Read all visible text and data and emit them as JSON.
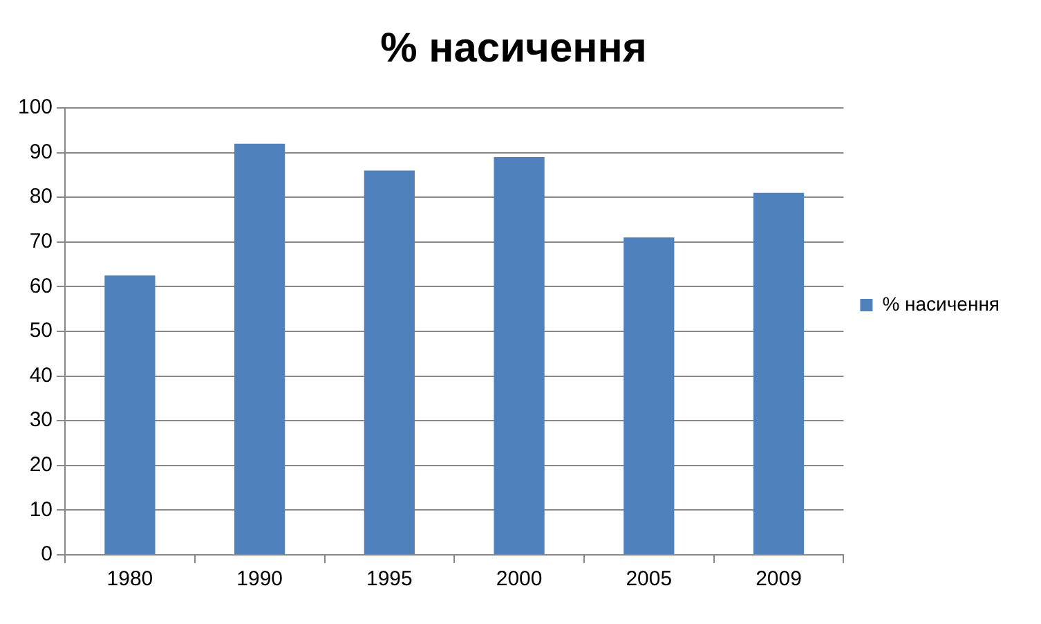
{
  "chart_data": {
    "type": "bar",
    "title": "% насичення",
    "categories": [
      "1980",
      "1990",
      "1995",
      "2000",
      "2005",
      "2009"
    ],
    "series": [
      {
        "name": "% насичення",
        "color": "#4f81bd",
        "values": [
          62.5,
          92,
          86,
          89,
          71,
          81
        ]
      }
    ],
    "ylim": [
      0,
      100
    ],
    "yticks": [
      0,
      10,
      20,
      30,
      40,
      50,
      60,
      70,
      80,
      90,
      100
    ],
    "grid": "y",
    "legend": "right"
  }
}
